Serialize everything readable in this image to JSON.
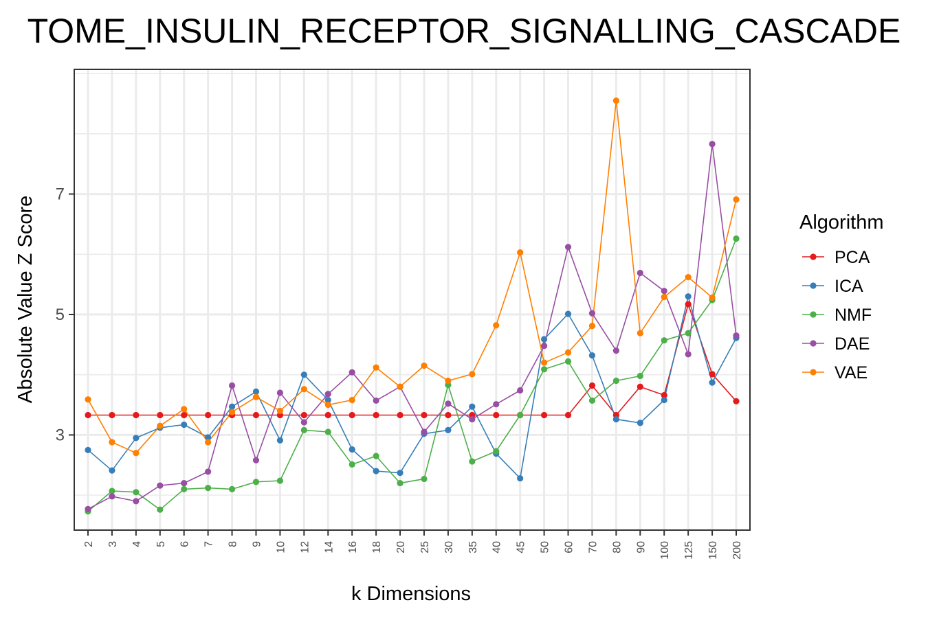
{
  "chart_data": {
    "type": "line",
    "title": "TOME_INSULIN_RECEPTOR_SIGNALLING_CASCADE",
    "xlabel": "k Dimensions",
    "ylabel": "Absolute Value Z Score",
    "categories": [
      "2",
      "3",
      "4",
      "5",
      "6",
      "7",
      "8",
      "9",
      "10",
      "12",
      "14",
      "16",
      "18",
      "20",
      "25",
      "30",
      "35",
      "40",
      "45",
      "50",
      "60",
      "70",
      "80",
      "90",
      "100",
      "125",
      "150",
      "200"
    ],
    "y_ticks": [
      3,
      5,
      7
    ],
    "ylim": [
      1.42,
      9.07
    ],
    "grid": true,
    "legend_title": "Algorithm",
    "legend_position": "right",
    "series": [
      {
        "name": "PCA",
        "color": "#e41a1c",
        "values": [
          3.33,
          3.33,
          3.33,
          3.33,
          3.33,
          3.33,
          3.33,
          3.33,
          3.33,
          3.33,
          3.33,
          3.33,
          3.33,
          3.33,
          3.33,
          3.33,
          3.33,
          3.33,
          3.33,
          3.33,
          3.33,
          3.82,
          3.33,
          3.8,
          3.66,
          5.17,
          4.01,
          3.56
        ]
      },
      {
        "name": "ICA",
        "color": "#377eb8",
        "values": [
          2.75,
          2.41,
          2.95,
          3.12,
          3.17,
          2.96,
          3.47,
          3.72,
          2.91,
          4.0,
          3.58,
          2.76,
          2.4,
          2.37,
          3.02,
          3.08,
          3.47,
          2.69,
          2.28,
          4.59,
          5.01,
          4.32,
          3.26,
          3.2,
          3.58,
          5.3,
          3.87,
          4.61
        ]
      },
      {
        "name": "NMF",
        "color": "#4daf4a",
        "values": [
          1.73,
          2.07,
          2.05,
          1.76,
          2.1,
          2.12,
          2.1,
          2.22,
          2.24,
          3.08,
          3.05,
          2.51,
          2.65,
          2.2,
          2.27,
          3.83,
          2.56,
          2.73,
          3.33,
          4.09,
          4.22,
          3.57,
          3.9,
          3.98,
          4.57,
          4.69,
          5.24,
          6.26
        ]
      },
      {
        "name": "DAE",
        "color": "#984ea3",
        "values": [
          1.77,
          1.98,
          1.9,
          2.16,
          2.2,
          2.39,
          3.82,
          2.58,
          3.7,
          3.21,
          3.68,
          4.04,
          3.57,
          3.8,
          3.05,
          3.52,
          3.26,
          3.51,
          3.74,
          4.48,
          6.12,
          5.02,
          4.4,
          5.69,
          5.39,
          4.34,
          7.83,
          4.65
        ]
      },
      {
        "name": "VAE",
        "color": "#ff7f00",
        "values": [
          3.59,
          2.88,
          2.7,
          3.15,
          3.43,
          2.88,
          3.38,
          3.63,
          3.4,
          3.76,
          3.5,
          3.58,
          4.12,
          3.8,
          4.15,
          3.9,
          4.01,
          4.82,
          6.03,
          4.2,
          4.37,
          4.81,
          8.55,
          4.69,
          5.29,
          5.62,
          5.28,
          6.91
        ]
      }
    ]
  }
}
